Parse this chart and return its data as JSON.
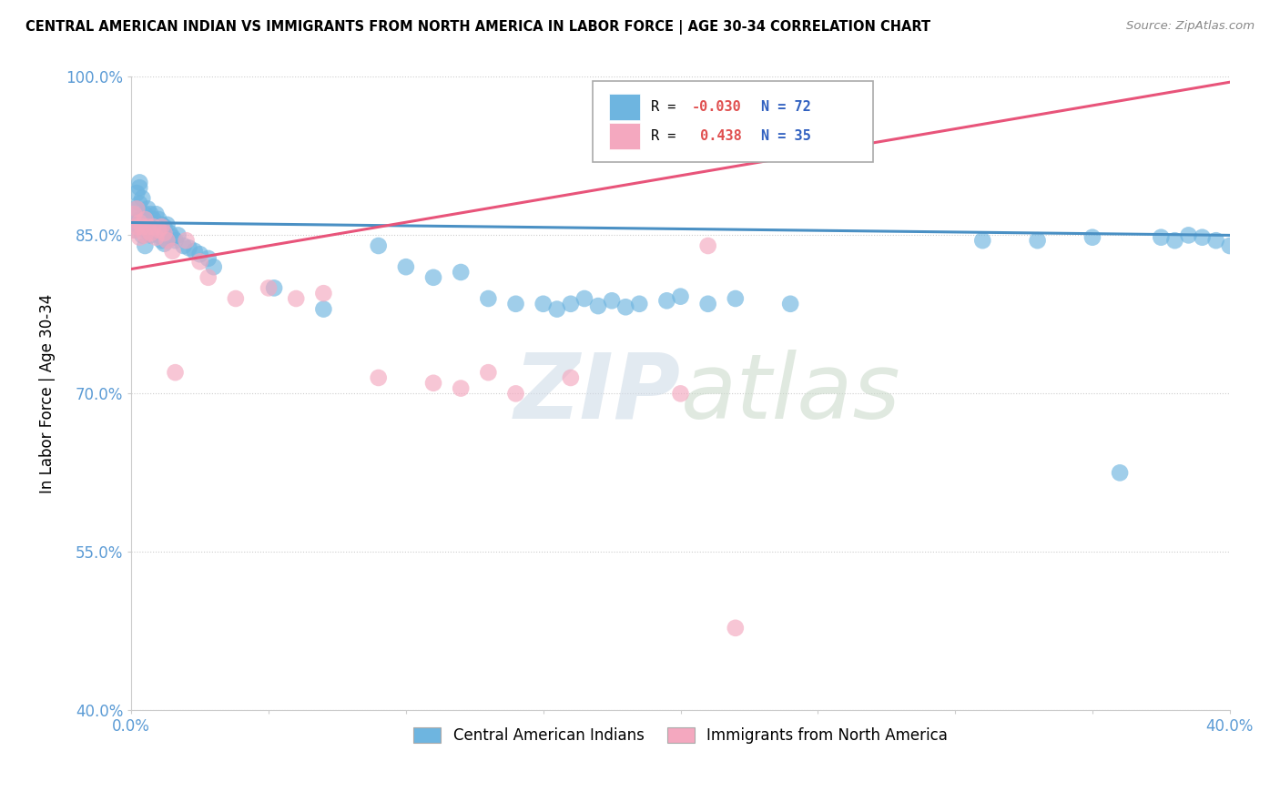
{
  "title": "CENTRAL AMERICAN INDIAN VS IMMIGRANTS FROM NORTH AMERICA IN LABOR FORCE | AGE 30-34 CORRELATION CHART",
  "source_text": "Source: ZipAtlas.com",
  "ylabel": "In Labor Force | Age 30-34",
  "xlim": [
    0.0,
    0.4
  ],
  "ylim": [
    0.4,
    1.0
  ],
  "blue_R": -0.03,
  "blue_N": 72,
  "pink_R": 0.438,
  "pink_N": 35,
  "blue_color": "#6eb5e0",
  "pink_color": "#f4a8bf",
  "blue_line_color": "#4a90c4",
  "pink_line_color": "#e8547a",
  "tick_color": "#5b9bd5",
  "blue_x": [
    0.001,
    0.001,
    0.002,
    0.002,
    0.002,
    0.003,
    0.003,
    0.003,
    0.003,
    0.004,
    0.004,
    0.004,
    0.005,
    0.005,
    0.005,
    0.006,
    0.006,
    0.007,
    0.007,
    0.008,
    0.008,
    0.009,
    0.009,
    0.01,
    0.01,
    0.011,
    0.011,
    0.012,
    0.012,
    0.013,
    0.013,
    0.014,
    0.015,
    0.016,
    0.017,
    0.019,
    0.021,
    0.023,
    0.025,
    0.028,
    0.03,
    0.052,
    0.07,
    0.09,
    0.1,
    0.11,
    0.12,
    0.13,
    0.14,
    0.15,
    0.155,
    0.16,
    0.165,
    0.17,
    0.175,
    0.18,
    0.185,
    0.195,
    0.2,
    0.21,
    0.22,
    0.24,
    0.31,
    0.33,
    0.35,
    0.36,
    0.375,
    0.38,
    0.385,
    0.39,
    0.395,
    0.4
  ],
  "blue_y": [
    0.87,
    0.855,
    0.89,
    0.875,
    0.86,
    0.9,
    0.895,
    0.88,
    0.865,
    0.885,
    0.865,
    0.85,
    0.87,
    0.855,
    0.84,
    0.875,
    0.86,
    0.87,
    0.85,
    0.865,
    0.855,
    0.87,
    0.855,
    0.865,
    0.85,
    0.86,
    0.845,
    0.858,
    0.842,
    0.86,
    0.845,
    0.852,
    0.848,
    0.845,
    0.85,
    0.84,
    0.838,
    0.835,
    0.832,
    0.828,
    0.82,
    0.8,
    0.78,
    0.84,
    0.82,
    0.81,
    0.815,
    0.79,
    0.785,
    0.785,
    0.78,
    0.785,
    0.79,
    0.783,
    0.788,
    0.782,
    0.785,
    0.788,
    0.792,
    0.785,
    0.79,
    0.785,
    0.845,
    0.845,
    0.848,
    0.625,
    0.848,
    0.845,
    0.85,
    0.848,
    0.845,
    0.84
  ],
  "pink_x": [
    0.001,
    0.001,
    0.002,
    0.002,
    0.003,
    0.003,
    0.004,
    0.005,
    0.005,
    0.006,
    0.007,
    0.008,
    0.009,
    0.01,
    0.011,
    0.012,
    0.013,
    0.015,
    0.016,
    0.02,
    0.025,
    0.028,
    0.038,
    0.05,
    0.06,
    0.07,
    0.09,
    0.11,
    0.12,
    0.13,
    0.14,
    0.16,
    0.2,
    0.21,
    0.22
  ],
  "pink_y": [
    0.87,
    0.855,
    0.875,
    0.858,
    0.862,
    0.848,
    0.858,
    0.865,
    0.85,
    0.858,
    0.852,
    0.858,
    0.848,
    0.855,
    0.858,
    0.852,
    0.845,
    0.835,
    0.72,
    0.845,
    0.825,
    0.81,
    0.79,
    0.8,
    0.79,
    0.795,
    0.715,
    0.71,
    0.705,
    0.72,
    0.7,
    0.715,
    0.7,
    0.84,
    0.478
  ]
}
